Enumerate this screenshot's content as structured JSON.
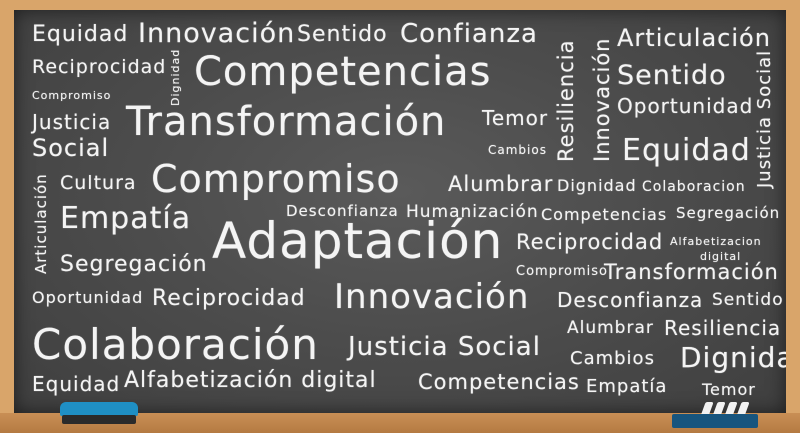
{
  "words": [
    {
      "text": "Equidad"
    },
    {
      "text": "Innovación"
    },
    {
      "text": "Sentido"
    },
    {
      "text": "Confianza"
    },
    {
      "text": "Resiliencia"
    },
    {
      "text": "Innovación"
    },
    {
      "text": "Articulación"
    },
    {
      "text": "Reciprocidad"
    },
    {
      "text": "Dignidad"
    },
    {
      "text": "Competencias"
    },
    {
      "text": "Sentido"
    },
    {
      "text": "Compromiso"
    },
    {
      "text": "Oportunidad"
    },
    {
      "text": "Justicia Social"
    },
    {
      "text": "Justicia"
    },
    {
      "text": "Transformación"
    },
    {
      "text": "Temor"
    },
    {
      "text": "Social"
    },
    {
      "text": "Cambios"
    },
    {
      "text": "Equidad"
    },
    {
      "text": "Articulación"
    },
    {
      "text": "Cultura"
    },
    {
      "text": "Compromiso"
    },
    {
      "text": "Alumbrar"
    },
    {
      "text": "Dignidad"
    },
    {
      "text": "Colaboracion"
    },
    {
      "text": "Empatía"
    },
    {
      "text": "Desconfianza"
    },
    {
      "text": "Humanización"
    },
    {
      "text": "Competencias"
    },
    {
      "text": "Segregación"
    },
    {
      "text": "Adaptación"
    },
    {
      "text": "Reciprocidad"
    },
    {
      "text": "Alfabetizacion"
    },
    {
      "text": "digital"
    },
    {
      "text": "Segregación"
    },
    {
      "text": "Compromiso"
    },
    {
      "text": "Transformación"
    },
    {
      "text": "Oportunidad"
    },
    {
      "text": "Reciprocidad"
    },
    {
      "text": "Innovación"
    },
    {
      "text": "Desconfianza"
    },
    {
      "text": "Sentido"
    },
    {
      "text": "Alumbrar"
    },
    {
      "text": "Resiliencia"
    },
    {
      "text": "Colaboración"
    },
    {
      "text": "Justicia Social"
    },
    {
      "text": "Cambios"
    },
    {
      "text": "Dignidad"
    },
    {
      "text": "Equidad"
    },
    {
      "text": "Alfabetización digital"
    },
    {
      "text": "Competencias"
    },
    {
      "text": "Empatía"
    },
    {
      "text": "Temor"
    }
  ],
  "colors": {
    "chalk": "#f4f4f4",
    "board": "#4d4d4d",
    "frame": "#d9a56a",
    "eraser": "#1f8fc4",
    "chalk_box": "#17557e"
  }
}
